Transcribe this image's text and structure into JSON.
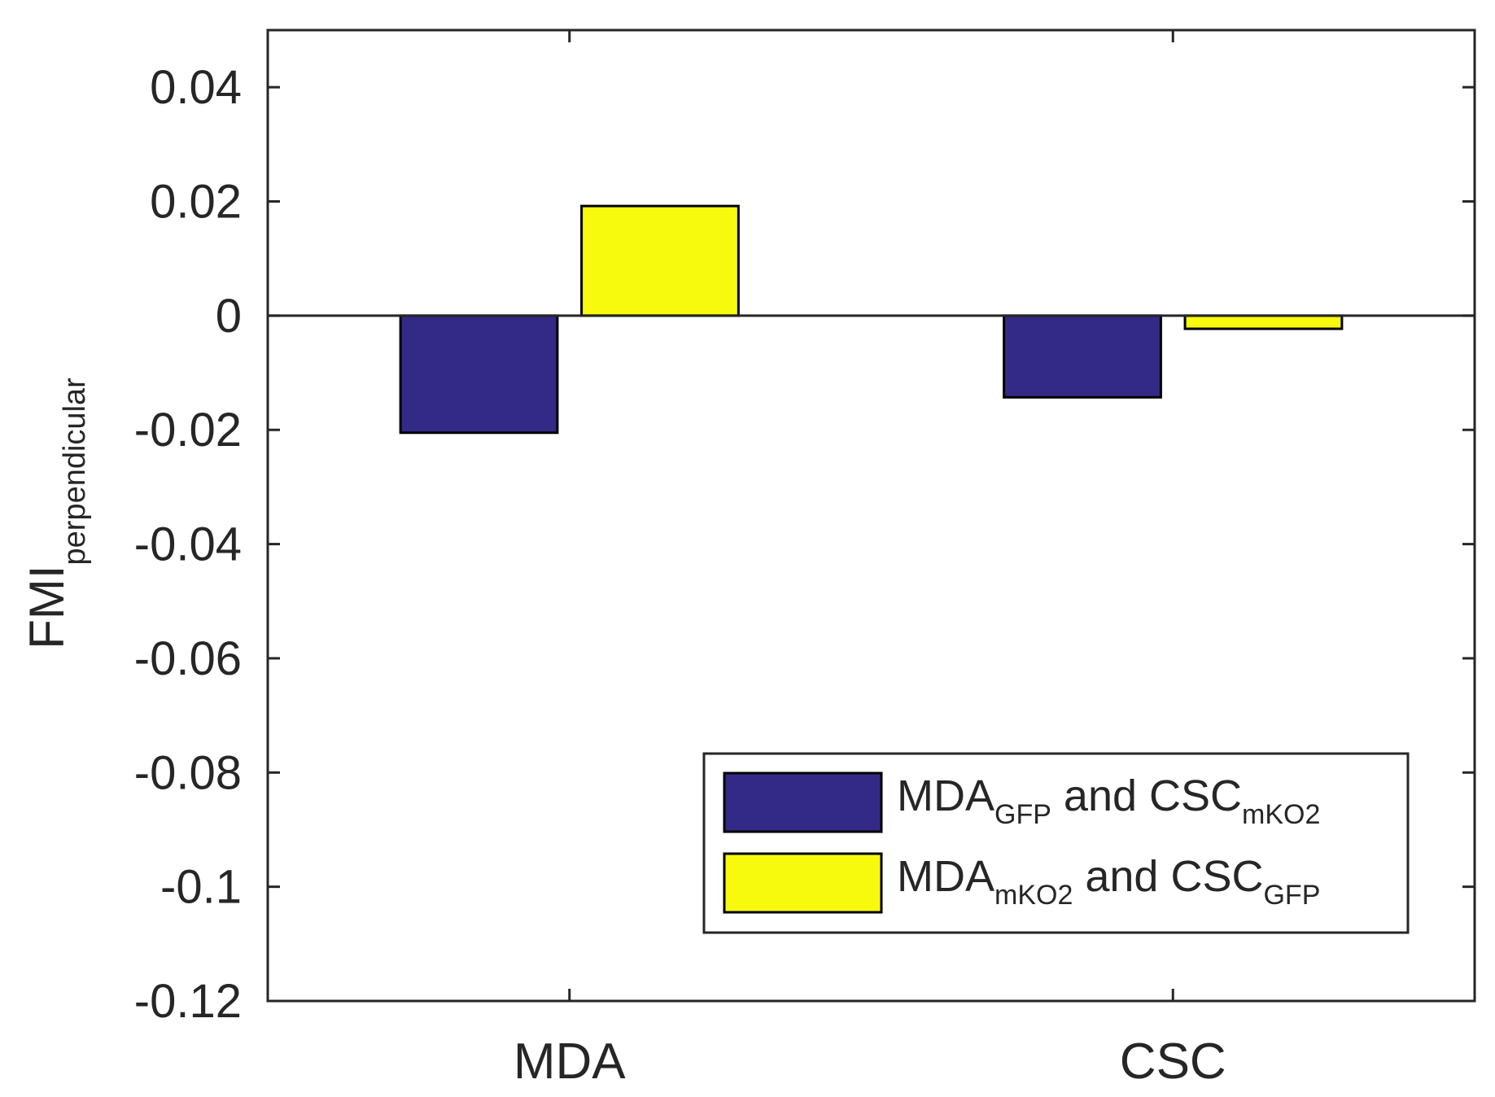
{
  "chart_data": {
    "type": "bar",
    "categories": [
      "MDA",
      "CSC"
    ],
    "series": [
      {
        "name": "MDA_GFP and CSC_mKO2",
        "label_parts": [
          "MDA",
          "GFP",
          " and CSC",
          "mKO2"
        ],
        "color": "#332a87",
        "values": [
          -0.0205,
          -0.0143
        ]
      },
      {
        "name": "MDA_mKO2 and CSC_GFP",
        "label_parts": [
          "MDA",
          "mKO2",
          " and CSC",
          "GFP"
        ],
        "color": "#f8fa0d",
        "values": [
          0.0192,
          -0.0023
        ]
      }
    ],
    "ylim": [
      -0.12,
      0.05
    ],
    "yticks": [
      0.04,
      0.02,
      0,
      -0.02,
      -0.04,
      -0.06,
      -0.08,
      -0.1,
      -0.12
    ],
    "ytick_labels": [
      "0.04",
      "0.02",
      "0",
      "-0.02",
      "-0.04",
      "-0.06",
      "-0.08",
      "-0.1",
      "-0.12"
    ],
    "ylabel_main": "FMI",
    "ylabel_sub": "perpendicular",
    "xlabel": "",
    "legend_location": "lower-right"
  }
}
